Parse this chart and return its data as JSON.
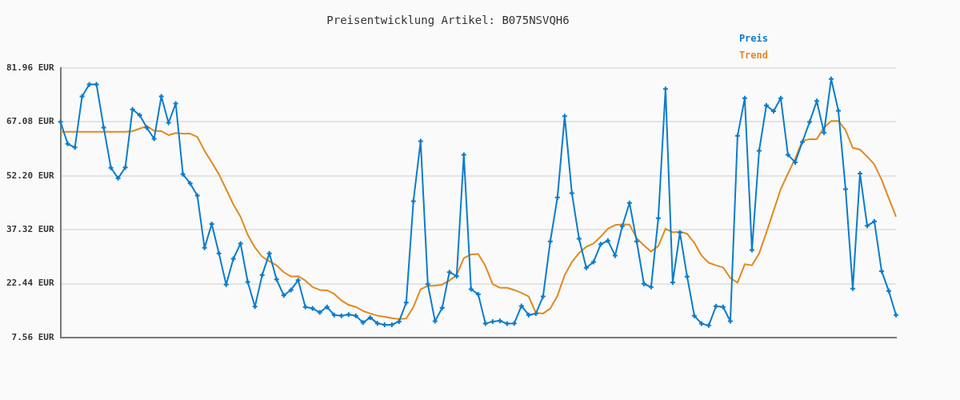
{
  "chart_data": {
    "type": "line",
    "title": "Preisentwicklung Artikel: B075NSVQH6",
    "categories": [
      null,
      null,
      null,
      null,
      null,
      null,
      null,
      null,
      null,
      null,
      null,
      null,
      null,
      null,
      null,
      null,
      null,
      null,
      null,
      null,
      null,
      null,
      null,
      null,
      null,
      null,
      null,
      null,
      null,
      null,
      null,
      null,
      null,
      null,
      null,
      null,
      null,
      null,
      null,
      null,
      null,
      null,
      null,
      null,
      null,
      null,
      null,
      null,
      null,
      null,
      null,
      null,
      null,
      null,
      null,
      null,
      null,
      null,
      null,
      null,
      null,
      null,
      null,
      null,
      null,
      null,
      null,
      null,
      null,
      null,
      null,
      null,
      null,
      null,
      null,
      null,
      null,
      null,
      null,
      null,
      null,
      null,
      null,
      null,
      null,
      null,
      null,
      null,
      null,
      null,
      null,
      null,
      null,
      null,
      null,
      null,
      null,
      null,
      null,
      null,
      null,
      null,
      null,
      null,
      null,
      null,
      null,
      null,
      null,
      null,
      null,
      null,
      null,
      null,
      null,
      null,
      null
    ],
    "series": [
      {
        "name": "Preis",
        "color": "#0a7ccc",
        "marker": "cross",
        "values": [
          67.08,
          61.0,
          60.0,
          74.1,
          77.4,
          77.4,
          65.5,
          54.4,
          51.5,
          54.5,
          70.5,
          68.9,
          65.4,
          62.4,
          74.1,
          66.8,
          72.1,
          52.6,
          50.1,
          46.7,
          32.3,
          38.9,
          30.8,
          22.2,
          29.3,
          33.5,
          22.9,
          16.1,
          24.8,
          30.8,
          23.6,
          19.2,
          20.7,
          23.4,
          16.0,
          15.6,
          14.5,
          16.0,
          13.8,
          13.6,
          13.9,
          13.6,
          11.7,
          13.1,
          11.5,
          11.1,
          11.1,
          12.0,
          17.2,
          45.2,
          61.7,
          22.3,
          12.1,
          15.8,
          25.6,
          24.5,
          58.0,
          20.9,
          19.5,
          11.4,
          12.0,
          12.2,
          11.4,
          11.5,
          16.3,
          13.8,
          14.2,
          18.9,
          34.1,
          46.2,
          68.6,
          47.4,
          34.8,
          26.8,
          28.4,
          33.3,
          34.3,
          30.2,
          38.3,
          44.7,
          34.1,
          22.4,
          21.5,
          40.5,
          76.1,
          22.8,
          36.5,
          24.4,
          13.6,
          11.4,
          10.9,
          16.2,
          16.0,
          12.1,
          63.2,
          73.6,
          31.7,
          59.1,
          71.6,
          70.0,
          73.6,
          58.0,
          55.9,
          61.5,
          67.0,
          72.8,
          64.1,
          78.9,
          70.1,
          48.5,
          21.1,
          52.8,
          38.4,
          39.6,
          25.9,
          20.4,
          13.8
        ]
      },
      {
        "name": "Trend",
        "color": "#e08a1e",
        "marker": "none",
        "values": [
          64.3,
          64.3,
          64.3,
          64.3,
          64.3,
          64.3,
          64.3,
          64.3,
          64.3,
          64.3,
          64.5,
          65.2,
          65.9,
          64.6,
          64.5,
          63.4,
          64.0,
          63.8,
          63.8,
          62.9,
          59.1,
          55.9,
          52.6,
          48.5,
          44.3,
          40.9,
          35.9,
          32.4,
          29.9,
          28.6,
          27.5,
          25.6,
          24.4,
          24.5,
          23.3,
          21.5,
          20.7,
          20.6,
          19.6,
          17.8,
          16.6,
          16.0,
          14.9,
          14.2,
          13.6,
          13.3,
          12.9,
          12.7,
          12.8,
          16.0,
          20.9,
          21.8,
          21.9,
          22.2,
          23.3,
          24.8,
          29.5,
          30.5,
          30.6,
          27.3,
          22.3,
          21.3,
          21.3,
          20.7,
          19.9,
          18.9,
          14.4,
          14.2,
          15.6,
          19.1,
          24.8,
          28.4,
          30.9,
          32.6,
          33.5,
          35.4,
          37.6,
          38.6,
          38.8,
          38.7,
          35.0,
          33.0,
          31.3,
          32.8,
          37.6,
          36.6,
          36.8,
          36.2,
          33.7,
          30.2,
          28.2,
          27.5,
          26.9,
          24.0,
          22.7,
          27.8,
          27.5,
          30.8,
          36.5,
          42.5,
          48.5,
          52.8,
          56.9,
          61.8,
          62.3,
          62.3,
          65.5,
          67.3,
          67.3,
          64.8,
          59.9,
          59.4,
          57.5,
          55.3,
          51.1,
          46.0,
          40.9
        ]
      }
    ],
    "ylim": [
      7.56,
      81.96
    ],
    "yticks": [
      {
        "value": 7.56,
        "label": "7.56 EUR"
      },
      {
        "value": 22.44,
        "label": "22.44 EUR"
      },
      {
        "value": 37.32,
        "label": "37.32 EUR"
      },
      {
        "value": 52.2,
        "label": "52.20 EUR"
      },
      {
        "value": 67.08,
        "label": "67.08 EUR"
      },
      {
        "value": 81.96,
        "label": "81.96 EUR"
      }
    ],
    "grid": "y",
    "legend": "top right",
    "line_style": "solid"
  }
}
